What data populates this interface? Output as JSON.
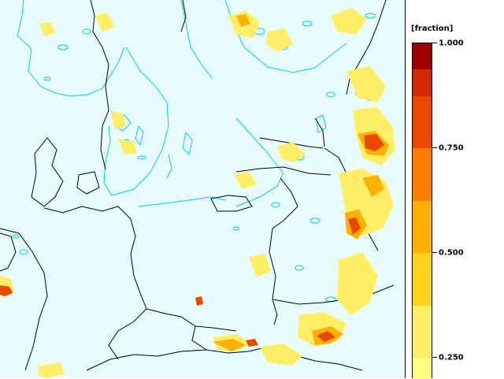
{
  "legend": {
    "unit": "[fraction]",
    "tick_labels": [
      "1.000",
      "0.750",
      "0.500",
      "0.250"
    ],
    "ticks": [
      1.0,
      0.75,
      0.5,
      0.25
    ],
    "scale_min": 0.2,
    "scale_max": 1.0,
    "bands": [
      {
        "from": 0.2,
        "to": 0.25,
        "color": "#ffff80"
      },
      {
        "from": 0.25,
        "to": 0.375,
        "color": "#ffee66"
      },
      {
        "from": 0.375,
        "to": 0.5,
        "color": "#ffd21e"
      },
      {
        "from": 0.5,
        "to": 0.625,
        "color": "#ffb000"
      },
      {
        "from": 0.625,
        "to": 0.75,
        "color": "#ff7d00"
      },
      {
        "from": 0.75,
        "to": 0.875,
        "color": "#e84800"
      },
      {
        "from": 0.875,
        "to": 0.9375,
        "color": "#d22800"
      },
      {
        "from": 0.9375,
        "to": 1.0,
        "color": "#9c0000"
      }
    ]
  },
  "map": {
    "background_color": "#e8fcfe",
    "coastline_color": "#00c8ff",
    "border_color": "#000000"
  }
}
